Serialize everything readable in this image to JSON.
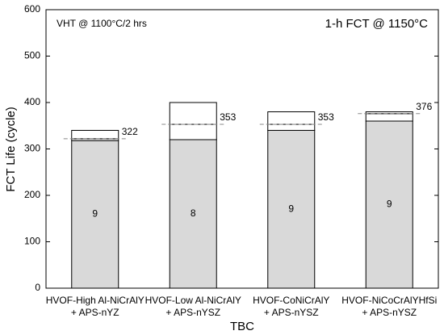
{
  "chart_data": {
    "type": "stacked-bar",
    "annotations": [
      "VHT @ 1100°C/2 hrs",
      "1-h FCT @ 1150°C"
    ],
    "xlabel": "TBC",
    "ylabel": "FCT Life (cycle)",
    "categories": [
      [
        "HVOF-High Al-NiCrAlY",
        "+ APS-nYZ"
      ],
      [
        "HVOF-Low Al-NiCrAlY",
        "+ APS-nYSZ"
      ],
      [
        "HVOF-CoNiCrAlY",
        "+ APS-nYSZ"
      ],
      [
        "HVOF-NiCoCrAlYHfSi",
        "+ APS-nYSZ"
      ]
    ],
    "series": [
      {
        "color": "#d9d9d9",
        "values": [
          318,
          320,
          340,
          360
        ]
      },
      {
        "color": "#ffffff",
        "values": [
          4,
          33,
          13,
          16
        ]
      },
      {
        "color": "#ffffff",
        "values": [
          18,
          47,
          27,
          4
        ]
      }
    ],
    "counts": [
      9,
      8,
      9,
      9
    ],
    "mean_values": [
      322,
      353,
      353,
      376
    ],
    "ylim": [
      0,
      600
    ],
    "yticks": [
      0,
      100,
      200,
      300,
      400,
      500,
      600
    ]
  }
}
